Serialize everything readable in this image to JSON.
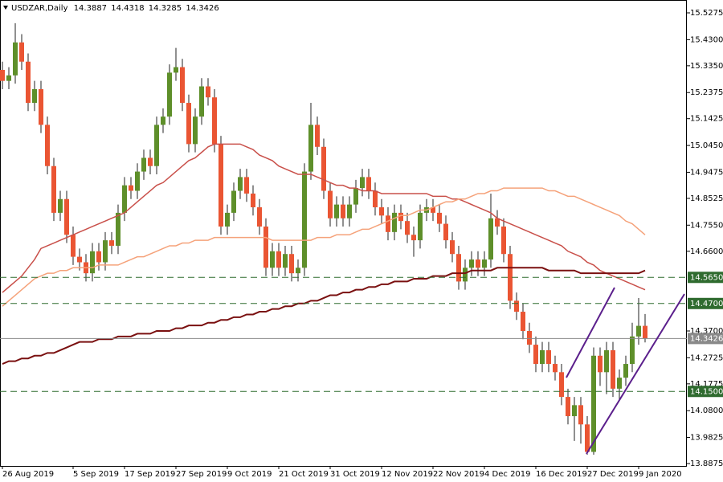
{
  "chart_data": {
    "type": "candlestick",
    "symbol": "USDZAR,Daily",
    "up_color": "#5e8f2a",
    "down_color": "#ea5533",
    "grid": false,
    "ylim": [
      13.8789,
      15.5743
    ],
    "yticks": [
      {
        "value": 15.5275,
        "label": "15.5275"
      },
      {
        "value": 15.43,
        "label": "15.4300"
      },
      {
        "value": 15.335,
        "label": "15.3350"
      },
      {
        "value": 15.2375,
        "label": "15.2375"
      },
      {
        "value": 15.1425,
        "label": "15.1425"
      },
      {
        "value": 15.045,
        "label": "15.0450"
      },
      {
        "value": 14.9475,
        "label": "14.9475"
      },
      {
        "value": 14.8525,
        "label": "14.8525"
      },
      {
        "value": 14.755,
        "label": "14.7550"
      },
      {
        "value": 14.66,
        "label": "14.6600"
      },
      {
        "value": 14.37,
        "label": "14.3700"
      },
      {
        "value": 14.2725,
        "label": "14.2725"
      },
      {
        "value": 14.1775,
        "label": "14.1775"
      },
      {
        "value": 14.08,
        "label": "14.0800"
      },
      {
        "value": 13.9825,
        "label": "13.9825"
      },
      {
        "value": 13.8875,
        "label": "13.8875"
      }
    ],
    "levels": [
      {
        "value": 14.565,
        "label": "14.5650"
      },
      {
        "value": 14.47,
        "label": "14.4700"
      },
      {
        "value": 14.15,
        "label": "14.1500"
      }
    ],
    "level_color": "#2f6b2f",
    "current_color": "#8a8a8a",
    "categories": [
      "26 Aug 2019",
      null,
      null,
      null,
      null,
      null,
      null,
      null,
      null,
      null,
      null,
      "5 Sep 2019",
      null,
      null,
      null,
      null,
      null,
      null,
      null,
      "17 Sep 2019",
      null,
      null,
      null,
      null,
      null,
      null,
      null,
      "27 Sep 2019",
      null,
      null,
      null,
      null,
      null,
      null,
      null,
      "9 Oct 2019",
      null,
      null,
      null,
      null,
      null,
      null,
      null,
      "21 Oct 2019",
      null,
      null,
      null,
      null,
      null,
      null,
      null,
      "31 Oct 2019",
      null,
      null,
      null,
      null,
      null,
      null,
      null,
      "12 Nov 2019",
      null,
      null,
      null,
      null,
      null,
      null,
      null,
      "22 Nov 2019",
      null,
      null,
      null,
      null,
      null,
      null,
      null,
      "4 Dec 2019",
      null,
      null,
      null,
      null,
      null,
      null,
      null,
      "16 Dec 2019",
      null,
      null,
      null,
      null,
      null,
      null,
      null,
      "27 Dec 2019",
      null,
      null,
      null,
      null,
      null,
      null,
      null,
      "9 Jan 2020",
      null
    ],
    "ohlc": [
      [
        15.32,
        15.35,
        15.25,
        15.28
      ],
      [
        15.28,
        15.33,
        15.25,
        15.3
      ],
      [
        15.3,
        15.49,
        15.27,
        15.42
      ],
      [
        15.42,
        15.45,
        15.32,
        15.35
      ],
      [
        15.35,
        15.38,
        15.17,
        15.2
      ],
      [
        15.2,
        15.28,
        15.17,
        15.25
      ],
      [
        15.25,
        15.28,
        15.09,
        15.12
      ],
      [
        15.12,
        15.15,
        14.94,
        14.97
      ],
      [
        14.97,
        15.0,
        14.77,
        14.8
      ],
      [
        14.8,
        14.88,
        14.77,
        14.85
      ],
      [
        14.85,
        14.88,
        14.69,
        14.72
      ],
      [
        14.72,
        14.75,
        14.61,
        14.64
      ],
      [
        14.64,
        14.67,
        14.59,
        14.62
      ],
      [
        14.62,
        14.65,
        14.55,
        14.58
      ],
      [
        14.58,
        14.69,
        14.55,
        14.66
      ],
      [
        14.66,
        14.69,
        14.59,
        14.62
      ],
      [
        14.62,
        14.73,
        14.59,
        14.7
      ],
      [
        14.7,
        14.73,
        14.65,
        14.68
      ],
      [
        14.68,
        14.83,
        14.65,
        14.8
      ],
      [
        14.8,
        14.93,
        14.77,
        14.9
      ],
      [
        14.9,
        14.93,
        14.85,
        14.88
      ],
      [
        14.88,
        14.98,
        14.85,
        14.95
      ],
      [
        14.95,
        15.03,
        14.92,
        15.0
      ],
      [
        15.0,
        15.03,
        14.94,
        14.97
      ],
      [
        14.97,
        15.15,
        14.94,
        15.12
      ],
      [
        15.12,
        15.18,
        15.09,
        15.15
      ],
      [
        15.15,
        15.34,
        15.12,
        15.31
      ],
      [
        15.31,
        15.4,
        15.28,
        15.33
      ],
      [
        15.33,
        15.36,
        15.17,
        15.2
      ],
      [
        15.2,
        15.23,
        15.02,
        15.05
      ],
      [
        15.05,
        15.18,
        15.02,
        15.15
      ],
      [
        15.15,
        15.29,
        15.12,
        15.26
      ],
      [
        15.26,
        15.29,
        15.19,
        15.22
      ],
      [
        15.22,
        15.25,
        15.02,
        15.05
      ],
      [
        15.05,
        15.08,
        14.72,
        14.75
      ],
      [
        14.75,
        14.83,
        14.72,
        14.8
      ],
      [
        14.8,
        14.91,
        14.77,
        14.88
      ],
      [
        14.88,
        14.96,
        14.85,
        14.93
      ],
      [
        14.93,
        14.96,
        14.84,
        14.87
      ],
      [
        14.87,
        14.9,
        14.79,
        14.82
      ],
      [
        14.82,
        14.85,
        14.72,
        14.75
      ],
      [
        14.75,
        14.78,
        14.57,
        14.6
      ],
      [
        14.6,
        14.69,
        14.57,
        14.66
      ],
      [
        14.66,
        14.69,
        14.57,
        14.6
      ],
      [
        14.6,
        14.68,
        14.57,
        14.65
      ],
      [
        14.65,
        14.68,
        14.55,
        14.58
      ],
      [
        14.58,
        14.63,
        14.55,
        14.6
      ],
      [
        14.6,
        14.98,
        14.57,
        14.95
      ],
      [
        14.95,
        15.2,
        14.92,
        15.12
      ],
      [
        15.12,
        15.15,
        15.01,
        15.04
      ],
      [
        15.04,
        15.07,
        14.85,
        14.88
      ],
      [
        14.88,
        14.91,
        14.75,
        14.78
      ],
      [
        14.78,
        14.86,
        14.75,
        14.83
      ],
      [
        14.83,
        14.86,
        14.75,
        14.78
      ],
      [
        14.78,
        14.86,
        14.75,
        14.83
      ],
      [
        14.83,
        14.92,
        14.8,
        14.89
      ],
      [
        14.89,
        14.96,
        14.86,
        14.93
      ],
      [
        14.93,
        14.96,
        14.85,
        14.88
      ],
      [
        14.88,
        14.91,
        14.79,
        14.82
      ],
      [
        14.82,
        14.85,
        14.76,
        14.79
      ],
      [
        14.79,
        14.82,
        14.7,
        14.73
      ],
      [
        14.73,
        14.83,
        14.7,
        14.8
      ],
      [
        14.8,
        14.83,
        14.74,
        14.77
      ],
      [
        14.77,
        14.8,
        14.69,
        14.72
      ],
      [
        14.72,
        14.75,
        14.64,
        14.7
      ],
      [
        14.7,
        14.83,
        14.67,
        14.8
      ],
      [
        14.8,
        14.85,
        14.77,
        14.82
      ],
      [
        14.82,
        14.85,
        14.77,
        14.8
      ],
      [
        14.8,
        14.83,
        14.73,
        14.76
      ],
      [
        14.76,
        14.79,
        14.67,
        14.7
      ],
      [
        14.7,
        14.73,
        14.62,
        14.65
      ],
      [
        14.65,
        14.68,
        14.52,
        14.55
      ],
      [
        14.55,
        14.63,
        14.52,
        14.6
      ],
      [
        14.6,
        14.66,
        14.57,
        14.63
      ],
      [
        14.63,
        14.66,
        14.57,
        14.6
      ],
      [
        14.6,
        14.66,
        14.57,
        14.63
      ],
      [
        14.63,
        14.87,
        14.6,
        14.78
      ],
      [
        14.78,
        14.81,
        14.72,
        14.75
      ],
      [
        14.75,
        14.78,
        14.62,
        14.65
      ],
      [
        14.65,
        14.68,
        14.45,
        14.48
      ],
      [
        14.48,
        14.51,
        14.41,
        14.44
      ],
      [
        14.44,
        14.47,
        14.34,
        14.37
      ],
      [
        14.37,
        14.4,
        14.29,
        14.32
      ],
      [
        14.32,
        14.35,
        14.22,
        14.25
      ],
      [
        14.25,
        14.33,
        14.22,
        14.3
      ],
      [
        14.3,
        14.33,
        14.22,
        14.25
      ],
      [
        14.25,
        14.28,
        14.19,
        14.22
      ],
      [
        14.22,
        14.25,
        14.1,
        14.13
      ],
      [
        14.13,
        14.16,
        14.03,
        14.06
      ],
      [
        14.06,
        14.13,
        13.97,
        14.1
      ],
      [
        14.1,
        14.13,
        13.96,
        14.03
      ],
      [
        14.03,
        14.06,
        13.92,
        13.93
      ],
      [
        13.93,
        14.31,
        13.92,
        14.28
      ],
      [
        14.28,
        14.31,
        14.17,
        14.22
      ],
      [
        14.22,
        14.33,
        14.14,
        14.3
      ],
      [
        14.3,
        14.33,
        14.13,
        14.16
      ],
      [
        14.16,
        14.23,
        14.12,
        14.2
      ],
      [
        14.2,
        14.28,
        14.17,
        14.25
      ],
      [
        14.25,
        14.4,
        14.22,
        14.35
      ],
      [
        14.35,
        14.49,
        14.32,
        14.3887
      ],
      [
        14.3887,
        14.4318,
        14.3285,
        14.3426
      ]
    ],
    "moving_averages": [
      {
        "color": "#c9504a",
        "values": [
          14.51,
          14.53,
          14.55,
          14.57,
          14.6,
          14.63,
          14.67,
          14.68,
          14.69,
          14.7,
          14.71,
          14.72,
          14.73,
          14.74,
          14.75,
          14.76,
          14.77,
          14.78,
          14.79,
          14.8,
          14.82,
          14.84,
          14.86,
          14.88,
          14.9,
          14.91,
          14.93,
          14.95,
          14.97,
          14.99,
          15.0,
          15.02,
          15.04,
          15.05,
          15.05,
          15.05,
          15.05,
          15.05,
          15.04,
          15.03,
          15.01,
          15.0,
          14.99,
          14.97,
          14.96,
          14.95,
          14.94,
          14.94,
          14.94,
          14.93,
          14.92,
          14.91,
          14.9,
          14.9,
          14.89,
          14.89,
          14.88,
          14.88,
          14.88,
          14.87,
          14.87,
          14.87,
          14.87,
          14.87,
          14.87,
          14.87,
          14.87,
          14.86,
          14.86,
          14.86,
          14.85,
          14.85,
          14.84,
          14.83,
          14.82,
          14.81,
          14.8,
          14.78,
          14.77,
          14.76,
          14.75,
          14.74,
          14.73,
          14.72,
          14.71,
          14.7,
          14.69,
          14.68,
          14.66,
          14.65,
          14.64,
          14.62,
          14.61,
          14.59,
          14.58,
          14.57,
          14.56,
          14.55,
          14.54,
          14.53,
          14.52
        ]
      },
      {
        "color": "#f5a27a",
        "values": [
          14.46,
          14.48,
          14.5,
          14.52,
          14.54,
          14.56,
          14.57,
          14.58,
          14.58,
          14.59,
          14.59,
          14.6,
          14.6,
          14.6,
          14.6,
          14.61,
          14.61,
          14.61,
          14.61,
          14.62,
          14.63,
          14.64,
          14.64,
          14.65,
          14.66,
          14.67,
          14.68,
          14.68,
          14.69,
          14.69,
          14.7,
          14.7,
          14.7,
          14.71,
          14.71,
          14.71,
          14.71,
          14.71,
          14.71,
          14.71,
          14.71,
          14.71,
          14.7,
          14.7,
          14.7,
          14.7,
          14.7,
          14.7,
          14.7,
          14.71,
          14.71,
          14.71,
          14.72,
          14.72,
          14.72,
          14.73,
          14.74,
          14.74,
          14.75,
          14.76,
          14.77,
          14.78,
          14.79,
          14.79,
          14.8,
          14.81,
          14.81,
          14.82,
          14.83,
          14.84,
          14.84,
          14.85,
          14.85,
          14.86,
          14.87,
          14.87,
          14.88,
          14.88,
          14.89,
          14.89,
          14.89,
          14.89,
          14.89,
          14.89,
          14.89,
          14.88,
          14.88,
          14.87,
          14.86,
          14.86,
          14.85,
          14.84,
          14.83,
          14.82,
          14.81,
          14.8,
          14.79,
          14.77,
          14.76,
          14.74,
          14.72
        ]
      },
      {
        "color": "#7a1010",
        "values": [
          14.25,
          14.26,
          14.26,
          14.27,
          14.27,
          14.28,
          14.28,
          14.29,
          14.29,
          14.3,
          14.31,
          14.32,
          14.33,
          14.33,
          14.33,
          14.34,
          14.34,
          14.34,
          14.35,
          14.35,
          14.35,
          14.36,
          14.36,
          14.36,
          14.37,
          14.37,
          14.37,
          14.38,
          14.38,
          14.39,
          14.39,
          14.39,
          14.4,
          14.4,
          14.41,
          14.41,
          14.42,
          14.42,
          14.43,
          14.43,
          14.44,
          14.44,
          14.45,
          14.45,
          14.46,
          14.46,
          14.47,
          14.47,
          14.48,
          14.48,
          14.49,
          14.5,
          14.5,
          14.51,
          14.51,
          14.52,
          14.52,
          14.53,
          14.53,
          14.54,
          14.54,
          14.55,
          14.55,
          14.55,
          14.56,
          14.56,
          14.56,
          14.57,
          14.57,
          14.57,
          14.58,
          14.58,
          14.58,
          14.59,
          14.59,
          14.59,
          14.59,
          14.6,
          14.6,
          14.6,
          14.6,
          14.6,
          14.6,
          14.6,
          14.6,
          14.59,
          14.59,
          14.59,
          14.59,
          14.59,
          14.58,
          14.58,
          14.58,
          14.58,
          14.58,
          14.58,
          14.58,
          14.58,
          14.58,
          14.58,
          14.59
        ]
      }
    ]
  }
}
